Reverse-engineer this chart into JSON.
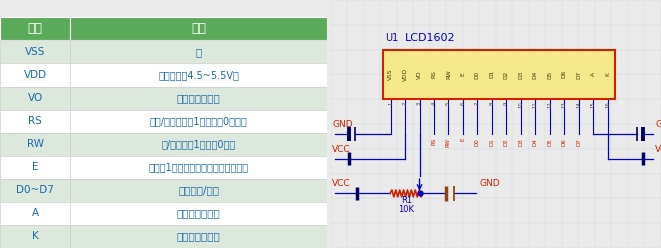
{
  "table_headers": [
    "引脚",
    "功能"
  ],
  "table_rows": [
    [
      "VSS",
      "地"
    ],
    [
      "VDD",
      "电源正极（4.5~5.5V）"
    ],
    [
      "VO",
      "对比度调节电压"
    ],
    [
      "RS",
      "数据/指令选择，1为数据，0为指令"
    ],
    [
      "RW",
      "读/写选择，1为读，0为写"
    ],
    [
      "E",
      "使能，1为数据有效，下降沿执行命令"
    ],
    [
      "D0~D7",
      "数据输入/输出"
    ],
    [
      "A",
      "背光灯电源正极"
    ],
    [
      "K",
      "背光灯电源负极"
    ]
  ],
  "header_bg": "#5aaa5a",
  "header_text_color": "#ffffff",
  "row_bg_even": "#ffffff",
  "row_bg_odd": "#dce8dc",
  "row_text_color": "#1a6aaa",
  "table_bg": "#eaeaea",
  "grid_color": "#bbbbbb",
  "figure_bg": "#eaeaea",
  "schematic_bg": "#e8ecf0",
  "pin_labels": [
    "VSS",
    "VDD",
    "VO",
    "RS",
    "RW",
    "E",
    "D0",
    "D1",
    "D2",
    "D3",
    "D4",
    "D5",
    "D6",
    "D7",
    "A",
    "K"
  ],
  "pin_numbers": [
    "1",
    "2",
    "3",
    "4",
    "5",
    "6",
    "7",
    "8",
    "9",
    "10",
    "11",
    "12",
    "13",
    "14",
    "15",
    "16"
  ],
  "connector_labels": [
    "",
    "",
    "",
    "RS",
    "RW",
    "E",
    "D0",
    "D1",
    "D2",
    "D3",
    "D4",
    "D5",
    "D6",
    "D7",
    "",
    ""
  ],
  "ic_label": "LCD1602",
  "ic_ref": "U1",
  "ic_border": "#cc2200",
  "ic_fill": "#f5e88a",
  "ic_text": "#4a3a0a",
  "wire_blue": "#0000cc",
  "wire_dark": "#000066",
  "label_red": "#cc2200",
  "label_blue": "#0000cc"
}
